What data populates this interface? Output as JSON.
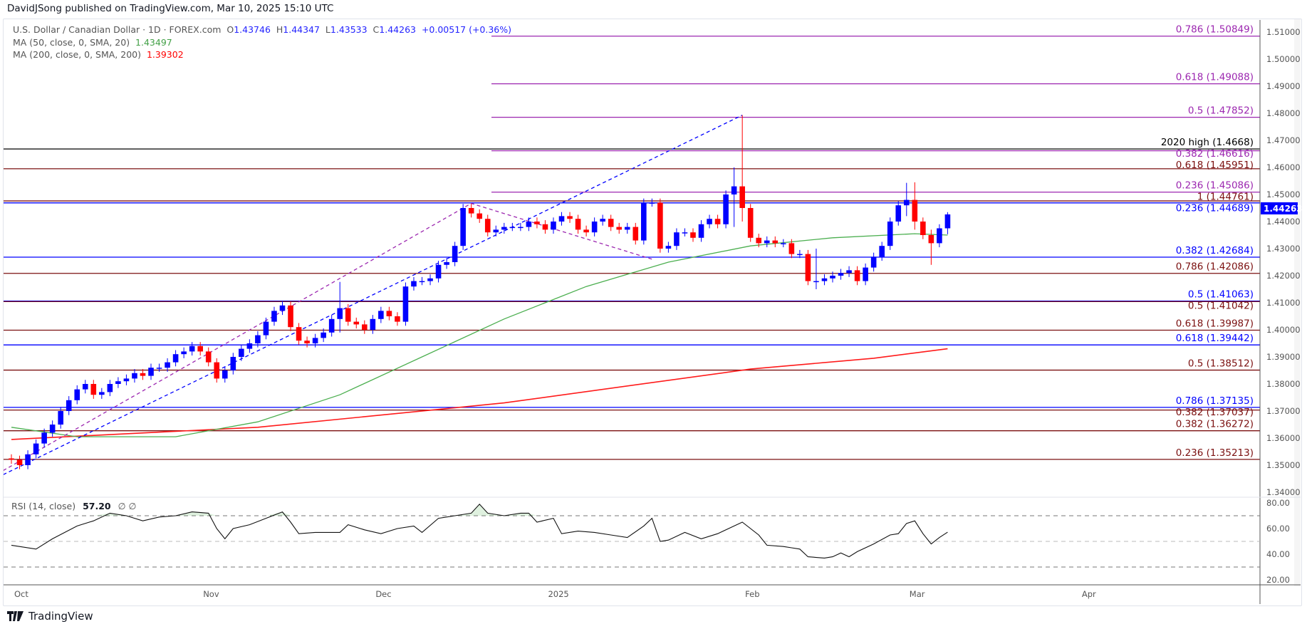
{
  "publisher": "DavidJSong published on TradingView.com, Mar 10, 2025 15:10 UTC",
  "legend": {
    "symbol": "U.S. Dollar / Canadian Dollar · 1D · FOREX.com",
    "open_label": "O",
    "open": "1.43746",
    "high_label": "H",
    "high": "1.44347",
    "low_label": "L",
    "low": "1.43533",
    "close_label": "C",
    "close": "1.44263",
    "change": "+0.00517 (+0.36%)",
    "ma50_label": "MA (50, close, 0, SMA, 20)",
    "ma50_value": "1.43497",
    "ma200_label": "MA (200, close, 0, SMA, 200)",
    "ma200_value": "1.39302"
  },
  "rsi_legend": {
    "label": "RSI (14, close)",
    "value": "57.20",
    "extra1": "∅",
    "extra2": "∅"
  },
  "last_price": "1.44263",
  "logo_text": "TradingView",
  "colors": {
    "up": "#0000ff",
    "down": "#ff0000",
    "ma50": "#4caf50",
    "ma200": "#ff1a1a",
    "fib_blue": "#0000ff",
    "fib_red": "#7b1010",
    "fib_purple": "#9c27b0",
    "black": "#000000"
  },
  "chart_data": {
    "type": "candlestick",
    "title": "U.S. Dollar / Canadian Dollar · 1D · FOREX.com",
    "ylim": [
      1.335,
      1.515
    ],
    "price_ticks": [
      "1.34000",
      "1.35000",
      "1.36000",
      "1.37000",
      "1.38000",
      "1.39000",
      "1.40000",
      "1.41000",
      "1.42000",
      "1.43000",
      "1.44000",
      "1.45000",
      "1.46000",
      "1.47000",
      "1.48000",
      "1.49000",
      "1.50000",
      "1.51000"
    ],
    "x_ticks": [
      {
        "label": "Oct",
        "index": 0
      },
      {
        "label": "Nov",
        "index": 23
      },
      {
        "label": "Dec",
        "index": 44
      },
      {
        "label": "2025",
        "index": 65
      },
      {
        "label": "Feb",
        "index": 89
      },
      {
        "label": "Mar",
        "index": 109
      },
      {
        "label": "Apr",
        "index": 130
      }
    ],
    "first_open": 1.3525,
    "closes": [
      1.352,
      1.35,
      1.354,
      1.358,
      1.362,
      1.365,
      1.37,
      1.374,
      1.378,
      1.38,
      1.376,
      1.377,
      1.38,
      1.381,
      1.382,
      1.384,
      1.383,
      1.386,
      1.386,
      1.388,
      1.391,
      1.392,
      1.394,
      1.392,
      1.388,
      1.382,
      1.385,
      1.39,
      1.393,
      1.395,
      1.398,
      1.403,
      1.407,
      1.409,
      1.401,
      1.396,
      1.395,
      1.397,
      1.399,
      1.404,
      1.408,
      1.403,
      1.402,
      1.4,
      1.404,
      1.407,
      1.405,
      1.403,
      1.416,
      1.418,
      1.418,
      1.419,
      1.424,
      1.425,
      1.431,
      1.445,
      1.443,
      1.441,
      1.436,
      1.437,
      1.438,
      1.438,
      1.438,
      1.44,
      1.439,
      1.437,
      1.44,
      1.442,
      1.441,
      1.437,
      1.436,
      1.44,
      1.441,
      1.438,
      1.437,
      1.438,
      1.433,
      1.447,
      1.447,
      1.43,
      1.431,
      1.436,
      1.436,
      1.434,
      1.439,
      1.441,
      1.439,
      1.45,
      1.453,
      1.445,
      1.434,
      1.432,
      1.433,
      1.432,
      1.432,
      1.428,
      1.428,
      1.418,
      1.418,
      1.419,
      1.42,
      1.421,
      1.422,
      1.418,
      1.423,
      1.427,
      1.431,
      1.44,
      1.446,
      1.448,
      1.44,
      1.435,
      1.432,
      1.4375,
      1.44263
    ],
    "wick_overrides": {
      "40": [
        1.399,
        1.4177
      ],
      "88": [
        1.438,
        1.46
      ],
      "89": [
        1.44,
        1.4793
      ],
      "98": [
        1.415,
        1.43
      ],
      "109": [
        1.442,
        1.4543
      ],
      "110": [
        1.437,
        1.4545
      ],
      "112": [
        1.424,
        1.437
      ],
      "114": [
        1.4353,
        1.44347
      ]
    },
    "ma50": [
      [
        0,
        1.364
      ],
      [
        8,
        1.3605
      ],
      [
        20,
        1.3605
      ],
      [
        30,
        1.366
      ],
      [
        40,
        1.376
      ],
      [
        50,
        1.39
      ],
      [
        60,
        1.404
      ],
      [
        70,
        1.416
      ],
      [
        80,
        1.425
      ],
      [
        90,
        1.431
      ],
      [
        100,
        1.434
      ],
      [
        110,
        1.4355
      ],
      [
        114,
        1.435
      ]
    ],
    "ma200": [
      [
        0,
        1.3595
      ],
      [
        30,
        1.364
      ],
      [
        60,
        1.373
      ],
      [
        90,
        1.3855
      ],
      [
        105,
        1.3895
      ],
      [
        114,
        1.393
      ]
    ],
    "fib_levels": [
      {
        "label": "0.786 (1.50849)",
        "price": 1.50849,
        "color": "purple",
        "partial": true
      },
      {
        "label": "0.618 (1.49088)",
        "price": 1.49088,
        "color": "purple",
        "partial": true
      },
      {
        "label": "0.5 (1.47852)",
        "price": 1.47852,
        "color": "purple",
        "partial": true
      },
      {
        "label": "0.382 (1.46616)",
        "price": 1.46616,
        "color": "purple",
        "partial": true
      },
      {
        "label": "2020 high (1.4668)",
        "price": 1.4668,
        "color": "black",
        "partial": false
      },
      {
        "label": "0.618 (1.45951)",
        "price": 1.45951,
        "color": "red",
        "partial": false
      },
      {
        "label": "0.236 (1.45086)",
        "price": 1.45086,
        "color": "purple",
        "partial": true
      },
      {
        "label": "1 (1.44761)",
        "price": 1.44761,
        "color": "red",
        "partial": false
      },
      {
        "label": "0.236 (1.44689)",
        "price": 1.44689,
        "color": "blue",
        "partial": false
      },
      {
        "label": "0.382 (1.42684)",
        "price": 1.42684,
        "color": "blue",
        "partial": false
      },
      {
        "label": "0.786 (1.42086)",
        "price": 1.42086,
        "color": "red",
        "partial": false
      },
      {
        "label": "0.5 (1.41063)",
        "price": 1.41063,
        "color": "blue",
        "partial": false
      },
      {
        "label": "0.5 (1.41042)",
        "price": 1.41042,
        "color": "red",
        "partial": false
      },
      {
        "label": "0.618 (1.39987)",
        "price": 1.39987,
        "color": "red",
        "partial": false
      },
      {
        "label": "0.618 (1.39442)",
        "price": 1.39442,
        "color": "blue",
        "partial": false
      },
      {
        "label": "0.5 (1.38512)",
        "price": 1.38512,
        "color": "red",
        "partial": false
      },
      {
        "label": "0.786 (1.37135)",
        "price": 1.37135,
        "color": "blue",
        "partial": false
      },
      {
        "label": "0.382 (1.37037)",
        "price": 1.37037,
        "color": "red",
        "partial": false
      },
      {
        "label": "0.382 (1.36272)",
        "price": 1.36272,
        "color": "red",
        "partial": false
      },
      {
        "label": "0.236 (1.35213)",
        "price": 1.35213,
        "color": "red",
        "partial": false
      }
    ],
    "trendlines": [
      {
        "name": "blue-trend",
        "color": "blue",
        "points": [
          [
            -1,
            1.3465
          ],
          [
            89,
            1.4793
          ]
        ]
      },
      {
        "name": "purple-trend",
        "color": "purple",
        "points": [
          [
            -1,
            1.348
          ],
          [
            56,
            1.4467
          ],
          [
            78,
            1.4261
          ]
        ]
      }
    ],
    "rsi": {
      "ylim": [
        20,
        80
      ],
      "ticks": [
        "20.00",
        "40.00",
        "60.00",
        "80.00"
      ],
      "bands": [
        30,
        50,
        70
      ],
      "points": [
        [
          0,
          47
        ],
        [
          3,
          44
        ],
        [
          5,
          52
        ],
        [
          8,
          62
        ],
        [
          10,
          66
        ],
        [
          12,
          72
        ],
        [
          14,
          70
        ],
        [
          16,
          66
        ],
        [
          18,
          69
        ],
        [
          20,
          70
        ],
        [
          22,
          73
        ],
        [
          24,
          72
        ],
        [
          25,
          60
        ],
        [
          26,
          52
        ],
        [
          27,
          60
        ],
        [
          29,
          63
        ],
        [
          31,
          68
        ],
        [
          33,
          73
        ],
        [
          34,
          65
        ],
        [
          35,
          56
        ],
        [
          37,
          57
        ],
        [
          40,
          57
        ],
        [
          41,
          63
        ],
        [
          43,
          59
        ],
        [
          45,
          56
        ],
        [
          47,
          60
        ],
        [
          49,
          62
        ],
        [
          50,
          57
        ],
        [
          52,
          68
        ],
        [
          54,
          70
        ],
        [
          56,
          72
        ],
        [
          57,
          79
        ],
        [
          58,
          72
        ],
        [
          60,
          70
        ],
        [
          62,
          72
        ],
        [
          63,
          72
        ],
        [
          64,
          65
        ],
        [
          66,
          68
        ],
        [
          67,
          56
        ],
        [
          69,
          58
        ],
        [
          71,
          57
        ],
        [
          73,
          55
        ],
        [
          75,
          53
        ],
        [
          77,
          62
        ],
        [
          78,
          68
        ],
        [
          79,
          50
        ],
        [
          80,
          51
        ],
        [
          82,
          57
        ],
        [
          84,
          52
        ],
        [
          86,
          56
        ],
        [
          88,
          62
        ],
        [
          89,
          65
        ],
        [
          91,
          55
        ],
        [
          92,
          47
        ],
        [
          94,
          46
        ],
        [
          95,
          45
        ],
        [
          96,
          44
        ],
        [
          97,
          38
        ],
        [
          99,
          37
        ],
        [
          100,
          38
        ],
        [
          101,
          41
        ],
        [
          102,
          38
        ],
        [
          103,
          42
        ],
        [
          105,
          48
        ],
        [
          107,
          55
        ],
        [
          108,
          56
        ],
        [
          109,
          64
        ],
        [
          110,
          66
        ],
        [
          111,
          56
        ],
        [
          112,
          48
        ],
        [
          113,
          53
        ],
        [
          114,
          57.2
        ]
      ]
    }
  }
}
